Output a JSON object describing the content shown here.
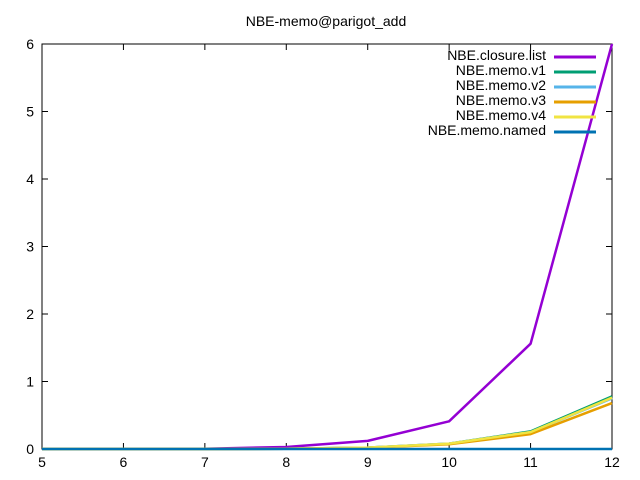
{
  "chart_data": {
    "type": "line",
    "title": "NBE-memo@parigot_add",
    "xlabel": "",
    "ylabel": "",
    "xlim": [
      5,
      12
    ],
    "ylim": [
      0,
      6
    ],
    "xticks": [
      "5",
      "6",
      "7",
      "8",
      "9",
      "10",
      "11",
      "12"
    ],
    "yticks": [
      "0",
      "1",
      "2",
      "3",
      "4",
      "5",
      "6"
    ],
    "grid": false,
    "legend_position": "top-right",
    "series": [
      {
        "name": "NBE.closure.list",
        "color": "#9400d3",
        "x": [
          5,
          6,
          7,
          8,
          9,
          10,
          11,
          12
        ],
        "y": [
          0.0,
          0.0,
          0.005,
          0.03,
          0.12,
          0.41,
          1.56,
          6.0
        ]
      },
      {
        "name": "NBE.memo.v1",
        "color": "#009e73",
        "x": [
          5,
          6,
          7,
          8,
          9,
          10,
          11,
          12
        ],
        "y": [
          0.0,
          0.0,
          0.0,
          0.005,
          0.02,
          0.08,
          0.26,
          0.78
        ]
      },
      {
        "name": "NBE.memo.v2",
        "color": "#56b4e9",
        "x": [
          5,
          6,
          7,
          8,
          9,
          10,
          11,
          12
        ],
        "y": [
          0.0,
          0.0,
          0.0,
          0.005,
          0.02,
          0.08,
          0.25,
          0.75
        ]
      },
      {
        "name": "NBE.memo.v3",
        "color": "#e69f00",
        "x": [
          5,
          6,
          7,
          8,
          9,
          10,
          11,
          12
        ],
        "y": [
          0.0,
          0.0,
          0.0,
          0.004,
          0.018,
          0.07,
          0.22,
          0.68
        ]
      },
      {
        "name": "NBE.memo.v4",
        "color": "#f0e442",
        "x": [
          5,
          6,
          7,
          8,
          9,
          10,
          11,
          12
        ],
        "y": [
          0.0,
          0.0,
          0.0,
          0.005,
          0.02,
          0.08,
          0.25,
          0.76
        ]
      },
      {
        "name": "NBE.memo.named",
        "color": "#0072b2",
        "x": [
          5,
          6,
          7,
          8,
          9,
          10,
          11,
          12
        ],
        "y": [
          0.0,
          0.0,
          0.0,
          0.0,
          0.0,
          0.0,
          0.0,
          0.0
        ]
      }
    ]
  }
}
